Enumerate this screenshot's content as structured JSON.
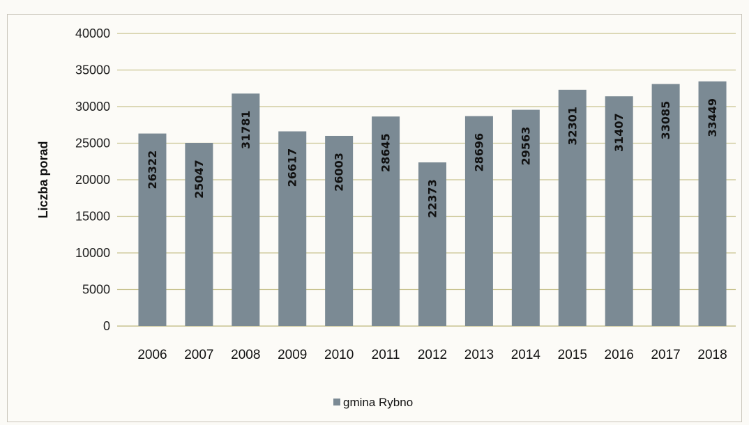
{
  "chart_data": {
    "type": "bar",
    "categories": [
      "2006",
      "2007",
      "2008",
      "2009",
      "2010",
      "2011",
      "2012",
      "2013",
      "2014",
      "2015",
      "2016",
      "2017",
      "2018"
    ],
    "series": [
      {
        "name": "gmina Rybno",
        "values": [
          26322,
          25047,
          31781,
          26617,
          26003,
          28645,
          22373,
          28696,
          29563,
          32301,
          31407,
          33085,
          33449
        ],
        "color": "#7b8a94"
      }
    ],
    "ylabel": "Liczba porad",
    "xlabel": "",
    "ylim": [
      0,
      40000
    ],
    "yticks": [
      "0",
      "5000",
      "10000",
      "15000",
      "20000",
      "25000",
      "30000",
      "35000",
      "40000"
    ],
    "grid": true,
    "gridline_color": "#c8c390",
    "legend_position": "bottom"
  }
}
